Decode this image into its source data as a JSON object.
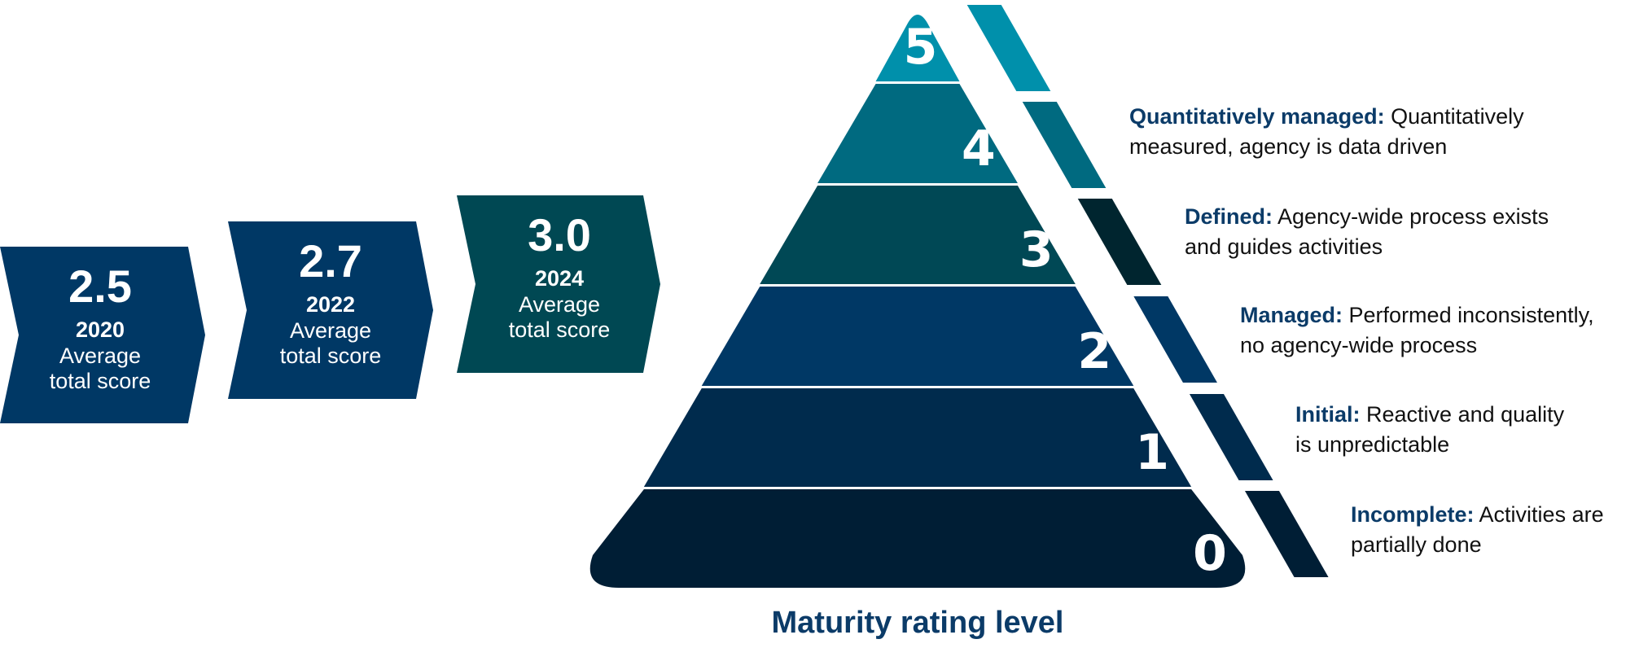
{
  "scores": [
    {
      "score": "2.5",
      "year": "2020",
      "caption_line1": "Average",
      "caption_line2": "total score",
      "color": "#003865"
    },
    {
      "score": "2.7",
      "year": "2022",
      "caption_line1": "Average",
      "caption_line2": "total score",
      "color": "#003865"
    },
    {
      "score": "3.0",
      "year": "2024",
      "caption_line1": "Average",
      "caption_line2": "total score",
      "color": "#004853"
    }
  ],
  "pyramid": {
    "title": "Maturity rating level",
    "levels": [
      {
        "number": "5",
        "color": "#0090ab",
        "stripe_color": "#0090ab",
        "name": "",
        "description": ""
      },
      {
        "number": "4",
        "color": "#006a80",
        "stripe_color": "#006a80",
        "name": "Quantitatively managed:",
        "line1": "Quantitatively",
        "line2": "measured, agency is data driven"
      },
      {
        "number": "3",
        "color": "#004855",
        "stripe_color": "#00252f",
        "name": "Defined:",
        "line1": "Agency-wide process exists",
        "line2": "and guides activities"
      },
      {
        "number": "2",
        "color": "#003865",
        "stripe_color": "#003865",
        "name": "Managed:",
        "line1": "Performed inconsistently,",
        "line2": "no agency-wide process"
      },
      {
        "number": "1",
        "color": "#002b4d",
        "stripe_color": "#002b4d",
        "name": "Initial:",
        "line1": "Reactive and quality",
        "line2": "is unpredictable"
      },
      {
        "number": "0",
        "color": "#001e35",
        "stripe_color": "#001e35",
        "name": "Incomplete:",
        "line1": "Activities are",
        "line2": "partially done"
      }
    ]
  }
}
